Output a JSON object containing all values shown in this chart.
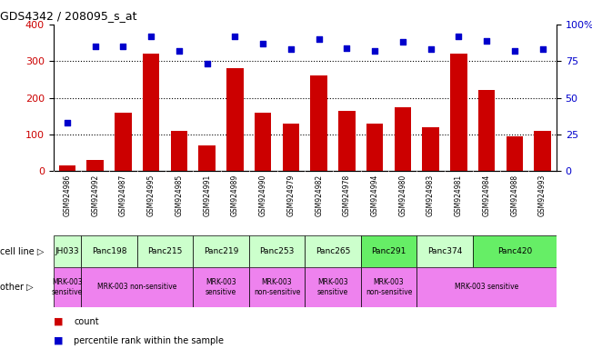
{
  "title": "GDS4342 / 208095_s_at",
  "samples": [
    "GSM924986",
    "GSM924992",
    "GSM924987",
    "GSM924995",
    "GSM924985",
    "GSM924991",
    "GSM924989",
    "GSM924990",
    "GSM924979",
    "GSM924982",
    "GSM924978",
    "GSM924994",
    "GSM924980",
    "GSM924983",
    "GSM924981",
    "GSM924984",
    "GSM924988",
    "GSM924993"
  ],
  "counts": [
    15,
    30,
    160,
    320,
    110,
    70,
    280,
    160,
    130,
    260,
    165,
    130,
    175,
    120,
    320,
    220,
    95,
    110
  ],
  "percentiles": [
    33,
    85,
    85,
    92,
    82,
    73,
    92,
    87,
    83,
    90,
    84,
    82,
    88,
    83,
    92,
    89,
    82,
    83
  ],
  "cell_lines": [
    {
      "label": "JH033",
      "start": 0,
      "end": 1,
      "color": "#ccffcc"
    },
    {
      "label": "Panc198",
      "start": 1,
      "end": 3,
      "color": "#ccffcc"
    },
    {
      "label": "Panc215",
      "start": 3,
      "end": 5,
      "color": "#ccffcc"
    },
    {
      "label": "Panc219",
      "start": 5,
      "end": 7,
      "color": "#ccffcc"
    },
    {
      "label": "Panc253",
      "start": 7,
      "end": 9,
      "color": "#ccffcc"
    },
    {
      "label": "Panc265",
      "start": 9,
      "end": 11,
      "color": "#ccffcc"
    },
    {
      "label": "Panc291",
      "start": 11,
      "end": 13,
      "color": "#66ee66"
    },
    {
      "label": "Panc374",
      "start": 13,
      "end": 15,
      "color": "#ccffcc"
    },
    {
      "label": "Panc420",
      "start": 15,
      "end": 18,
      "color": "#66ee66"
    }
  ],
  "other_rows": [
    {
      "label": "MRK-003\nsensitive",
      "start": 0,
      "end": 1,
      "color": "#ee82ee"
    },
    {
      "label": "MRK-003 non-sensitive",
      "start": 1,
      "end": 5,
      "color": "#ee82ee"
    },
    {
      "label": "MRK-003\nsensitive",
      "start": 5,
      "end": 7,
      "color": "#ee82ee"
    },
    {
      "label": "MRK-003\nnon-sensitive",
      "start": 7,
      "end": 9,
      "color": "#ee82ee"
    },
    {
      "label": "MRK-003\nsensitive",
      "start": 9,
      "end": 11,
      "color": "#ee82ee"
    },
    {
      "label": "MRK-003\nnon-sensitive",
      "start": 11,
      "end": 13,
      "color": "#ee82ee"
    },
    {
      "label": "MRK-003 sensitive",
      "start": 13,
      "end": 18,
      "color": "#ee82ee"
    }
  ],
  "bar_color": "#cc0000",
  "dot_color": "#0000cc",
  "left_ylim": [
    0,
    400
  ],
  "right_ylim": [
    0,
    100
  ],
  "left_yticks": [
    0,
    100,
    200,
    300,
    400
  ],
  "right_yticks": [
    0,
    25,
    50,
    75,
    100
  ],
  "right_yticklabels": [
    "0",
    "25",
    "50",
    "75",
    "100%"
  ],
  "dotted_lines": [
    100,
    200,
    300
  ],
  "background_color": "#ffffff",
  "tick_bg_color": "#cccccc",
  "cell_line_label": "cell line",
  "other_label": "other"
}
